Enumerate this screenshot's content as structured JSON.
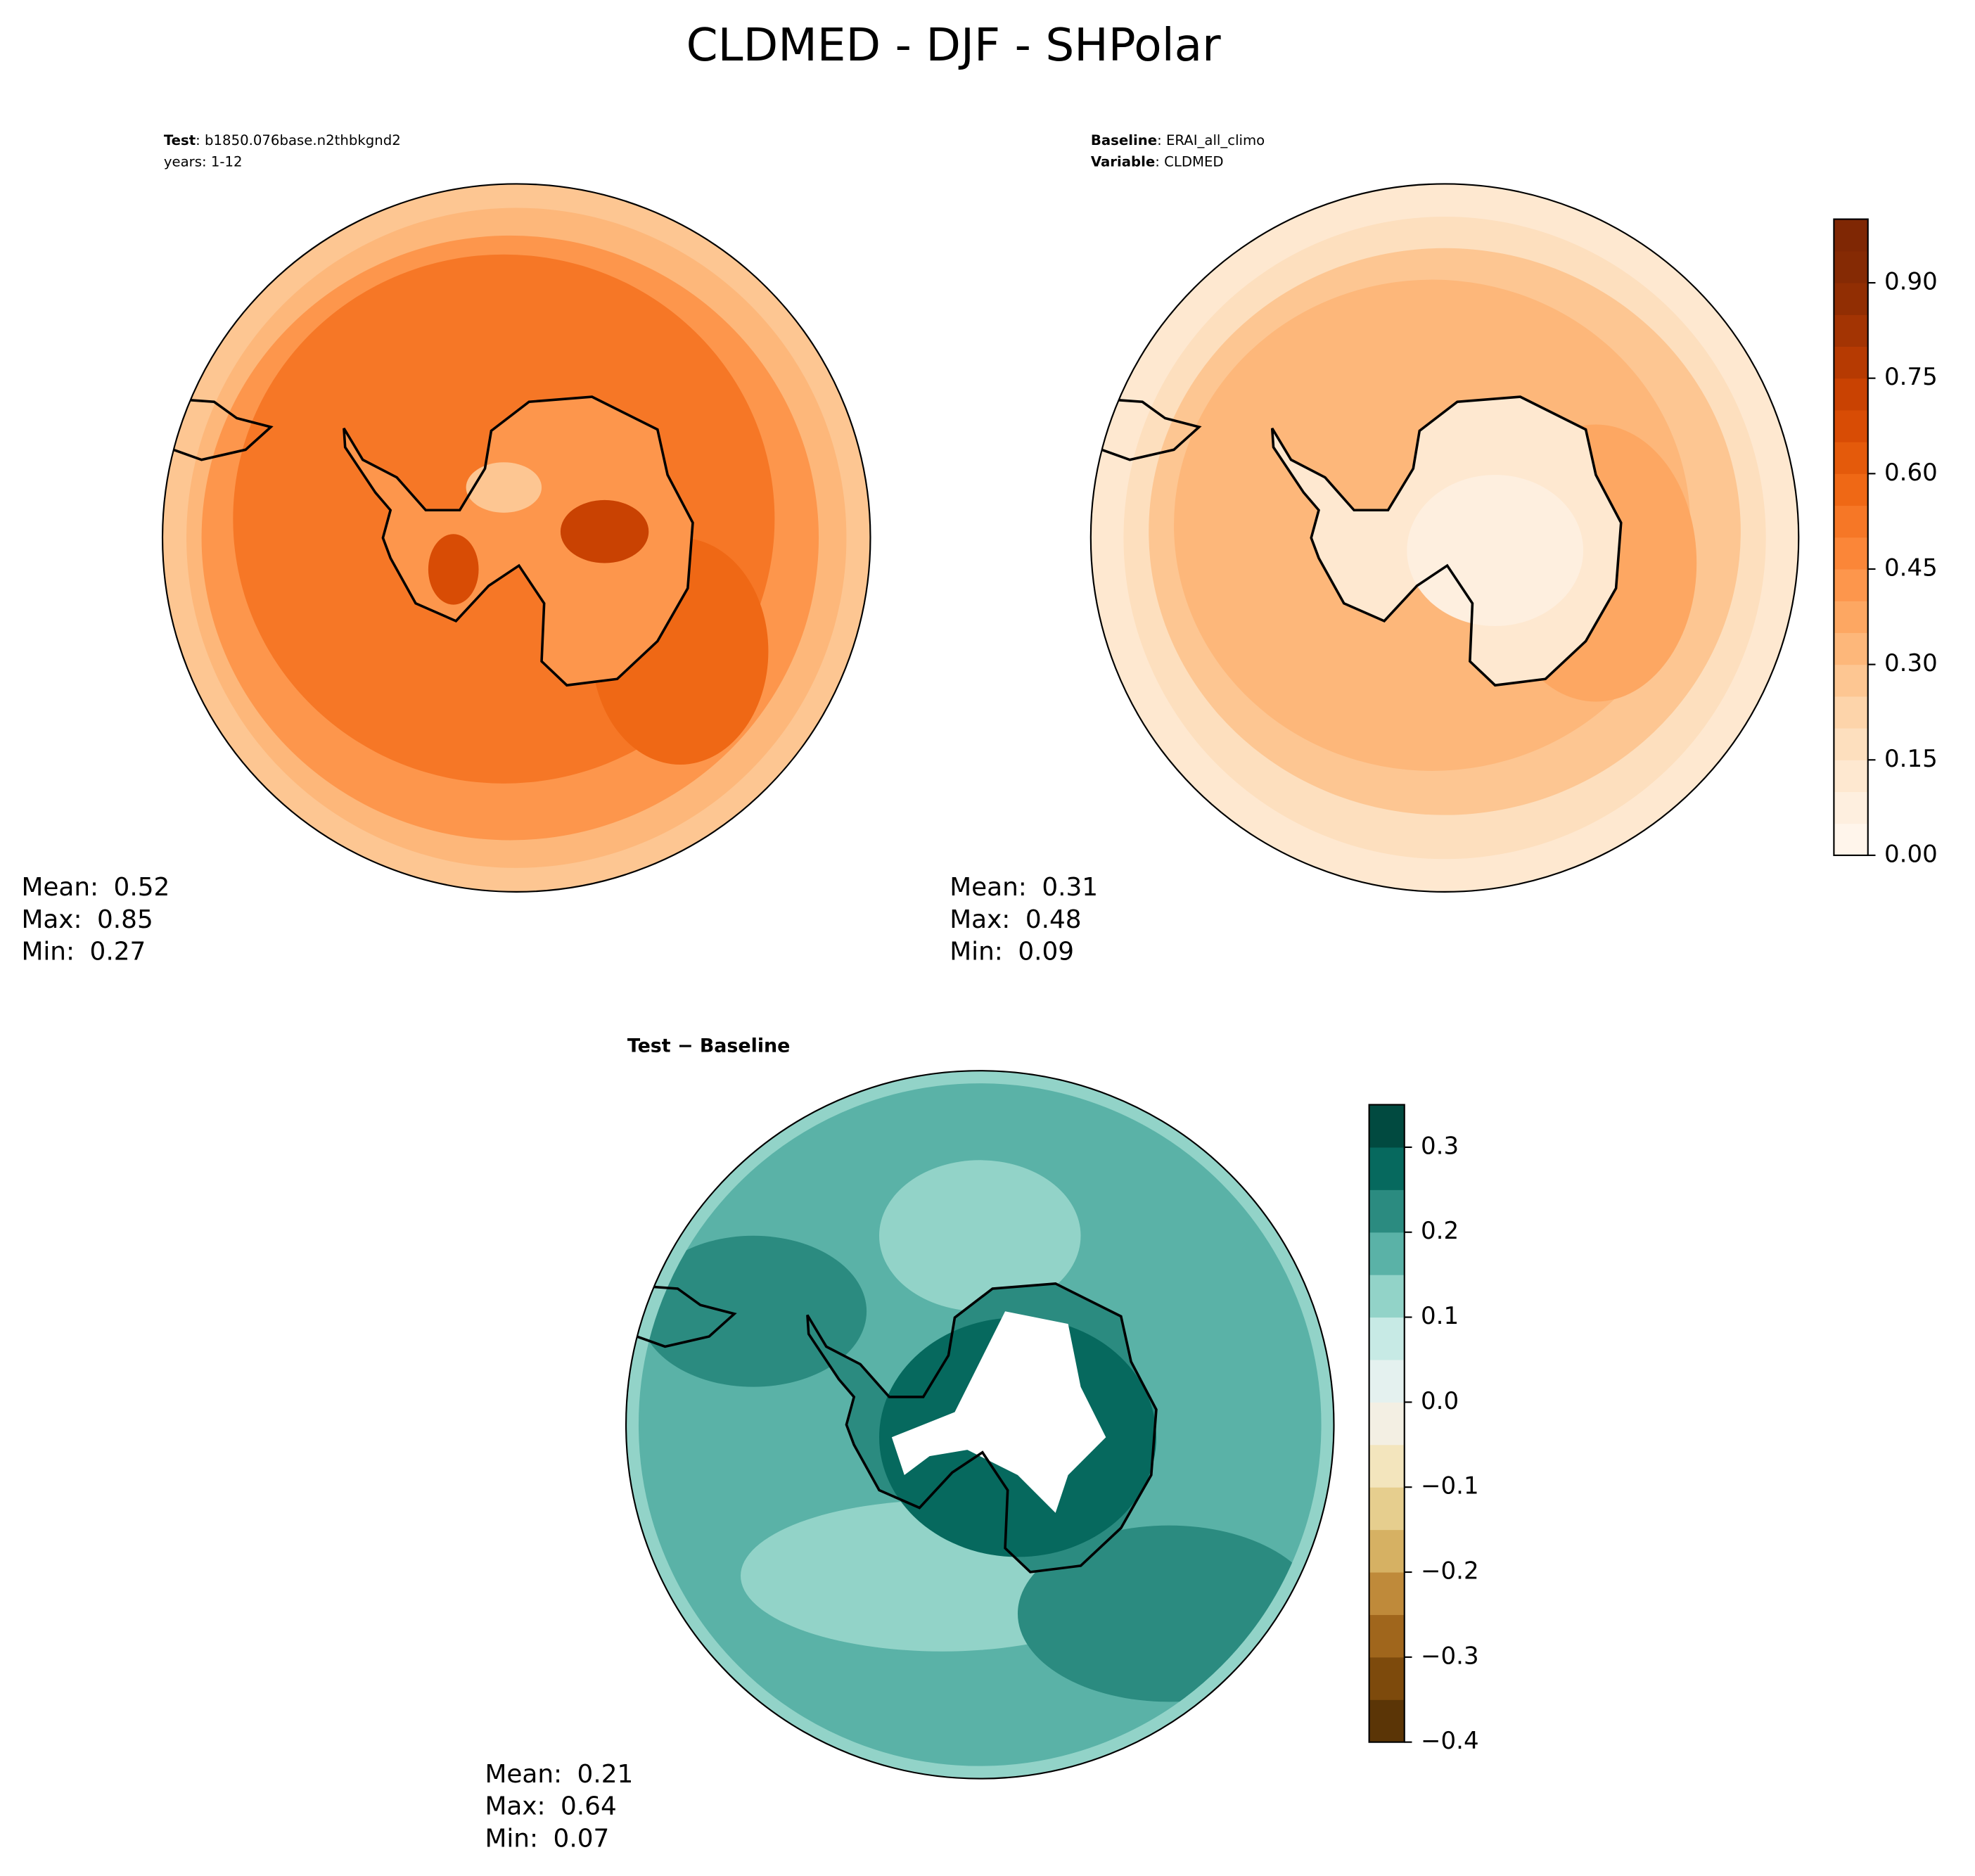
{
  "title": "CLDMED - DJF - SHPolar",
  "panels": [
    {
      "header": [
        {
          "bold": "Test",
          "text": ": b1850.076base.n2thbkgnd2"
        },
        {
          "text": "years: 1-12"
        }
      ],
      "stats": [
        {
          "label": "Mean:",
          "value": 0.52
        },
        {
          "label": "Max:",
          "value": 0.85
        },
        {
          "label": "Min:",
          "value": 0.27
        }
      ]
    },
    {
      "header": [
        {
          "bold": "Baseline",
          "text": ": ERAI_all_climo"
        },
        {
          "bold": "Variable",
          "text": ": CLDMED"
        }
      ],
      "stats": [
        {
          "label": "Mean:",
          "value": 0.31
        },
        {
          "label": "Max:",
          "value": 0.48
        },
        {
          "label": "Min:",
          "value": 0.09
        }
      ]
    },
    {
      "header": [
        {
          "bold": "Test − Baseline"
        }
      ],
      "stats": [
        {
          "label": "Mean:",
          "value": 0.21
        },
        {
          "label": "Max:",
          "value": 0.64
        },
        {
          "label": "Min:",
          "value": 0.07
        }
      ]
    }
  ],
  "colorbars": [
    {
      "ylim": [
        0,
        1.0
      ],
      "yticks": [
        {
          "value": 0,
          "label": "0.00"
        },
        0.15,
        {
          "value": 0.3,
          "label": "0.30"
        },
        0.45,
        {
          "value": 0.6,
          "label": "0.60"
        },
        0.75,
        {
          "value": 0.9,
          "label": "0.90"
        }
      ],
      "colors": [
        "#fff5eb",
        "#feefdf",
        "#fee8d0",
        "#fddfbe",
        "#fdd4aa",
        "#fdc692",
        "#fdb77a",
        "#fda762",
        "#fd964c",
        "#fb8638",
        "#f67726",
        "#ef6815",
        "#e45a0b",
        "#d84c05",
        "#c94202",
        "#b63a02",
        "#a33403",
        "#912e03",
        "#852a04",
        "#7f2704"
      ]
    },
    {
      "ylim": [
        -0.4,
        0.35
      ],
      "yticks": [
        {
          "value": -0.4,
          "label": "−0.4"
        },
        {
          "value": -0.3,
          "label": "−0.3"
        },
        {
          "value": -0.2,
          "label": "−0.2"
        },
        {
          "value": -0.1,
          "label": "−0.1"
        },
        {
          "value": 0,
          "label": "0.0"
        },
        0.1,
        0.2,
        0.3
      ],
      "colors": [
        "#5b3506",
        "#7d4a0c",
        "#a0661c",
        "#bf8a3a",
        "#d6b163",
        "#e6ce8e",
        "#f3e5bd",
        "#f3efe3",
        "#e4f1ef",
        "#c7eae5",
        "#92d3c8",
        "#5ab2a7",
        "#2b8b80",
        "#06695e",
        "#014a40"
      ]
    }
  ]
}
